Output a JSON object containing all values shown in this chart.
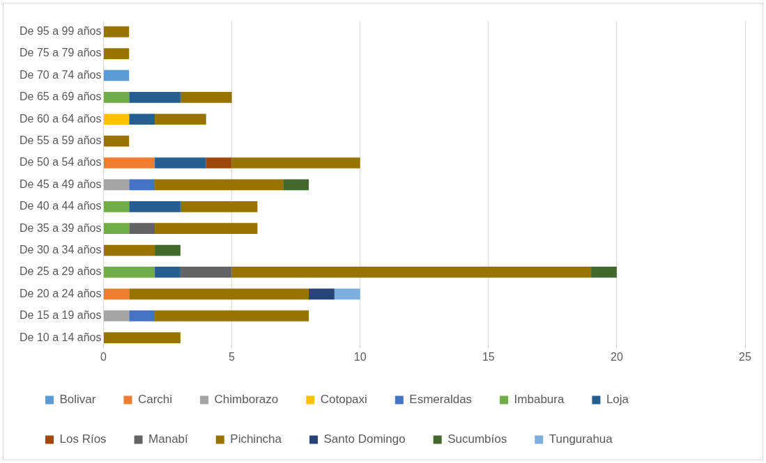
{
  "chart_data": {
    "type": "bar",
    "orientation": "horizontal",
    "stacked": true,
    "categories": [
      "De 95 a 99 años",
      "De 75 a 79 años",
      "De 70 a 74 años",
      "De 65 a 69 años",
      "De 60 a 64 años",
      "De 55 a 59 años",
      "De 50 a 54 años",
      "De 45 a 49 años",
      "De 40 a 44 años",
      "De 35 a 39 años",
      "De 30 a 34 años",
      "De 25 a 29 años",
      "De 20 a 24 años",
      "De 15 a 19 años",
      "De 10 a 14 años"
    ],
    "series": [
      {
        "name": "Bolivar",
        "color": "#5b9bd5",
        "values": [
          null,
          null,
          1,
          null,
          null,
          null,
          null,
          null,
          null,
          null,
          null,
          null,
          null,
          null,
          null
        ]
      },
      {
        "name": "Carchi",
        "color": "#ed7d31",
        "values": [
          null,
          null,
          null,
          null,
          null,
          null,
          2,
          null,
          null,
          null,
          null,
          null,
          1,
          null,
          null
        ]
      },
      {
        "name": "Chimborazo",
        "color": "#a5a5a5",
        "values": [
          null,
          null,
          null,
          null,
          null,
          null,
          null,
          1,
          null,
          null,
          null,
          null,
          null,
          1,
          null
        ]
      },
      {
        "name": "Cotopaxi",
        "color": "#ffc000",
        "values": [
          null,
          null,
          null,
          null,
          1,
          null,
          null,
          null,
          null,
          null,
          null,
          null,
          null,
          null,
          null
        ]
      },
      {
        "name": "Esmeraldas",
        "color": "#4472c4",
        "values": [
          null,
          null,
          null,
          null,
          null,
          null,
          null,
          1,
          null,
          null,
          null,
          null,
          null,
          1,
          null
        ]
      },
      {
        "name": "Imbabura",
        "color": "#70ad47",
        "values": [
          null,
          null,
          null,
          1,
          null,
          null,
          null,
          null,
          1,
          1,
          null,
          2,
          null,
          null,
          null
        ]
      },
      {
        "name": "Loja",
        "color": "#255e91",
        "values": [
          null,
          null,
          null,
          2,
          1,
          null,
          2,
          null,
          2,
          null,
          null,
          1,
          null,
          null,
          null
        ]
      },
      {
        "name": "Los Ríos",
        "color": "#9e480e",
        "values": [
          null,
          null,
          null,
          null,
          null,
          null,
          1,
          null,
          null,
          null,
          null,
          null,
          null,
          null,
          null
        ]
      },
      {
        "name": "Manabí",
        "color": "#636363",
        "values": [
          null,
          null,
          null,
          null,
          null,
          null,
          null,
          null,
          null,
          1,
          null,
          2,
          null,
          null,
          null
        ]
      },
      {
        "name": "Pichincha",
        "color": "#997300",
        "values": [
          1,
          1,
          null,
          2,
          2,
          1,
          5,
          5,
          3,
          4,
          2,
          14,
          7,
          6,
          3
        ]
      },
      {
        "name": "Santo Domingo",
        "color": "#264478",
        "values": [
          null,
          null,
          null,
          null,
          null,
          null,
          null,
          null,
          null,
          null,
          null,
          null,
          1,
          null,
          null
        ]
      },
      {
        "name": "Sucumbíos",
        "color": "#43682b",
        "values": [
          null,
          null,
          null,
          null,
          null,
          null,
          null,
          1,
          null,
          null,
          1,
          1,
          null,
          null,
          null
        ]
      },
      {
        "name": "Tungurahua",
        "color": "#7cafdd",
        "values": [
          null,
          null,
          null,
          null,
          null,
          null,
          null,
          null,
          null,
          null,
          null,
          null,
          1,
          null,
          null
        ]
      }
    ],
    "xlim": [
      0,
      25
    ],
    "xticks": [
      0,
      5,
      10,
      15,
      20,
      25
    ],
    "grid": "x",
    "legend": "bottom"
  }
}
